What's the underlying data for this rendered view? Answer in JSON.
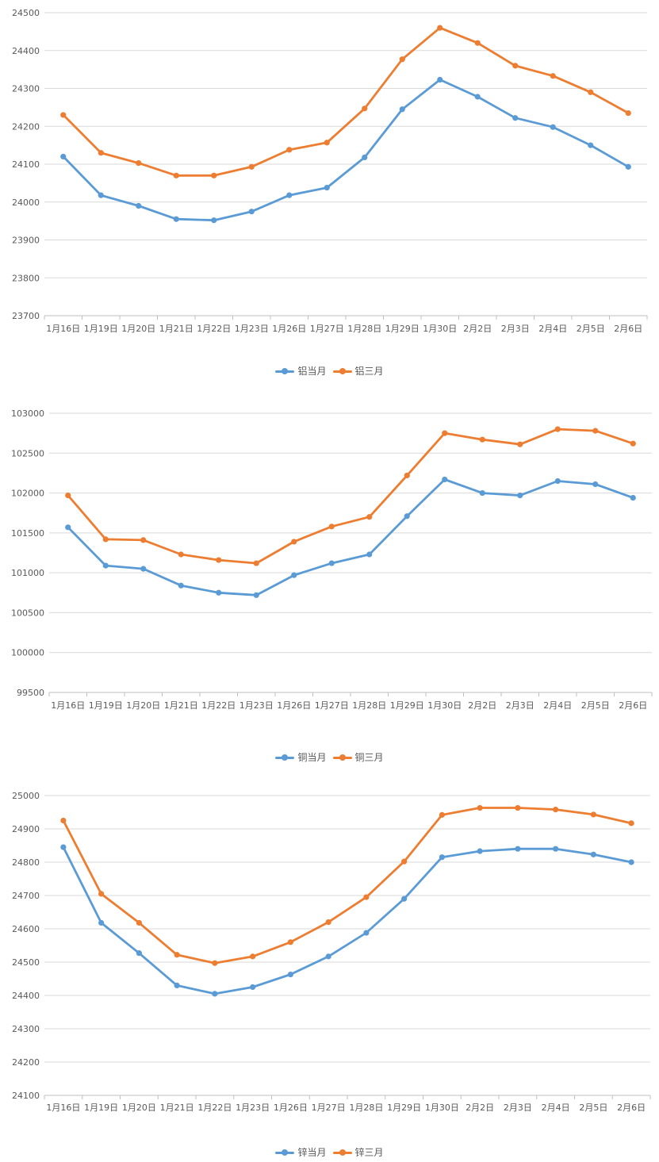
{
  "colors": {
    "series1": "#5B9BD5",
    "series2": "#ED7D31",
    "grid": "#D9D9D9",
    "axis": "#BFBFBF",
    "text": "#595959"
  },
  "chart_data": [
    {
      "type": "line",
      "categories": [
        "1月16日",
        "1月19日",
        "1月20日",
        "1月21日",
        "1月22日",
        "1月23日",
        "1月26日",
        "1月27日",
        "1月28日",
        "1月29日",
        "1月30日",
        "2月2日",
        "2月3日",
        "2月4日",
        "2月5日",
        "2月6日"
      ],
      "ylim": [
        23700,
        24500
      ],
      "ystep": 100,
      "yticks": [
        "23700",
        "23800",
        "23900",
        "24000",
        "24100",
        "24200",
        "24300",
        "24400",
        "24500"
      ],
      "legend_position": "bottom",
      "series": [
        {
          "name": "铝当月",
          "values": [
            24120,
            24018,
            23990,
            23955,
            23952,
            23975,
            24018,
            24038,
            24118,
            24245,
            24323,
            24278,
            24222,
            24198,
            24150,
            24093
          ]
        },
        {
          "name": "铝三月",
          "values": [
            24230,
            24130,
            24103,
            24070,
            24070,
            24093,
            24138,
            24157,
            24247,
            24377,
            24460,
            24420,
            24360,
            24333,
            24290,
            24235
          ]
        }
      ]
    },
    {
      "type": "line",
      "categories": [
        "1月16日",
        "1月19日",
        "1月20日",
        "1月21日",
        "1月22日",
        "1月23日",
        "1月26日",
        "1月27日",
        "1月28日",
        "1月29日",
        "1月30日",
        "2月2日",
        "2月3日",
        "2月4日",
        "2月5日",
        "2月6日"
      ],
      "ylim": [
        99500,
        103000
      ],
      "ystep": 500,
      "yticks": [
        "99500",
        "100000",
        "100500",
        "101000",
        "101500",
        "102000",
        "102500",
        "103000"
      ],
      "legend_position": "bottom",
      "series": [
        {
          "name": "铜当月",
          "values": [
            101570,
            101090,
            101050,
            100840,
            100750,
            100720,
            100970,
            101120,
            101230,
            101710,
            102170,
            102000,
            101970,
            102150,
            102110,
            101940
          ]
        },
        {
          "name": "铜三月",
          "values": [
            101970,
            101420,
            101410,
            101230,
            101160,
            101120,
            101390,
            101580,
            101700,
            102220,
            102750,
            102670,
            102610,
            102800,
            102780,
            102620
          ]
        }
      ]
    },
    {
      "type": "line",
      "categories": [
        "1月16日",
        "1月19日",
        "1月20日",
        "1月21日",
        "1月22日",
        "1月23日",
        "1月26日",
        "1月27日",
        "1月28日",
        "1月29日",
        "1月30日",
        "2月2日",
        "2月3日",
        "2月4日",
        "2月5日",
        "2月6日"
      ],
      "ylim": [
        24100,
        25000
      ],
      "ystep": 100,
      "yticks": [
        "24100",
        "24200",
        "24300",
        "24400",
        "24500",
        "24600",
        "24700",
        "24800",
        "24900",
        "25000"
      ],
      "legend_position": "bottom",
      "series": [
        {
          "name": "锌当月",
          "values": [
            24845,
            24618,
            24527,
            24430,
            24405,
            24425,
            24463,
            24517,
            24588,
            24690,
            24815,
            24833,
            24840,
            24840,
            24823,
            24800
          ]
        },
        {
          "name": "锌三月",
          "values": [
            24925,
            24705,
            24618,
            24522,
            24497,
            24517,
            24560,
            24620,
            24695,
            24802,
            24942,
            24963,
            24963,
            24958,
            24943,
            24917
          ]
        }
      ]
    }
  ]
}
